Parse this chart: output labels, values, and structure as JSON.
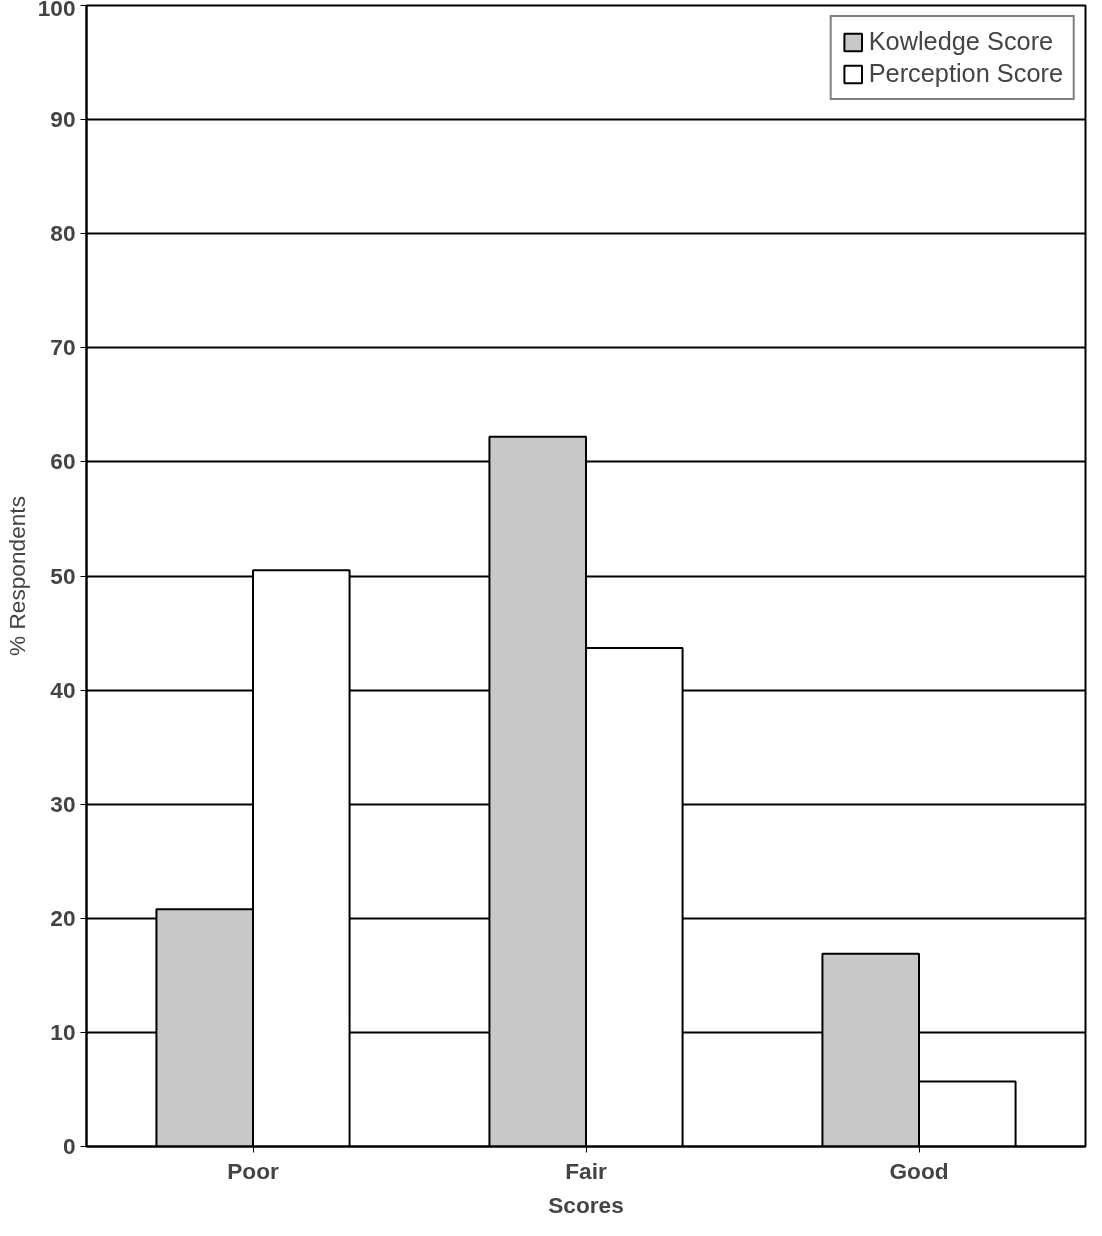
{
  "chart_data": {
    "type": "bar",
    "xlabel": "Scores",
    "ylabel": "% Respondents",
    "categories": [
      "Poor",
      "Fair",
      "Good"
    ],
    "series": [
      {
        "name": "Kowledge Score",
        "color": "#c8c8c8",
        "values": [
          20.8,
          62.2,
          16.9
        ]
      },
      {
        "name": "Perception Score",
        "color": "#ffffff",
        "values": [
          50.5,
          43.7,
          5.7
        ]
      }
    ],
    "ylim": [
      0,
      100
    ],
    "yticks": [
      0,
      10,
      20,
      30,
      40,
      50,
      60,
      70,
      80,
      90,
      100
    ],
    "grid": "y",
    "legend": "top right"
  }
}
